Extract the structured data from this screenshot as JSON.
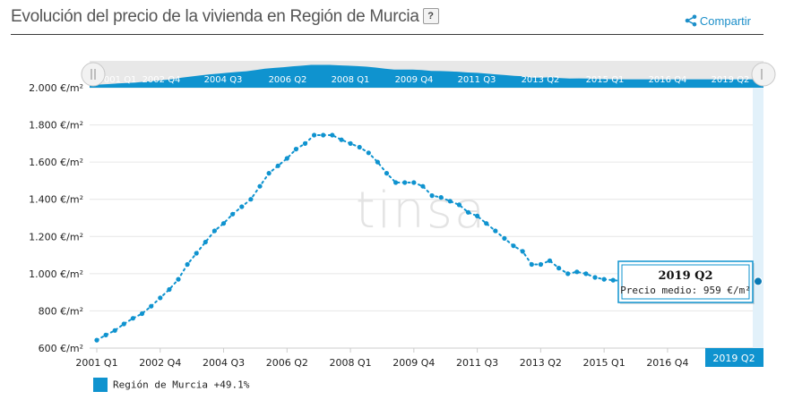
{
  "header": {
    "title": "Evolución del precio de la vivienda en Región de Murcia",
    "help_label": "?",
    "share_label": "Compartir"
  },
  "watermark": "tinsa",
  "colors": {
    "series": "#0f93cf",
    "dark": "#0a6fa5",
    "navigator_bg": "#e8e8e8"
  },
  "navigator": {
    "labels": [
      "2001 Q1",
      "2002 Q4",
      "2004 Q3",
      "2006 Q2",
      "2008 Q1",
      "2009 Q4",
      "2011 Q3",
      "2013 Q2",
      "2015 Q1",
      "2016 Q4",
      "2019 Q2"
    ]
  },
  "tooltip": {
    "title": "2019 Q2",
    "label": "Precio medio:",
    "value": "959 €/m²"
  },
  "current_label": "2019 Q2",
  "legend": {
    "name": "Región de Murcia",
    "change": "+49.1%"
  },
  "chart_data": {
    "type": "line",
    "xlabel": "",
    "ylabel": "",
    "ylim": [
      600,
      2000
    ],
    "yticks": [
      600,
      800,
      1000,
      1200,
      1400,
      1600,
      1800,
      2000
    ],
    "ytick_labels": [
      "600 €/m²",
      "800 €/m²",
      "1.000 €/m²",
      "1.200 €/m²",
      "1.400 €/m²",
      "1.600 €/m²",
      "1.800 €/m²",
      "2.000 €/m²"
    ],
    "xtick_labels": [
      "2001 Q1",
      "2002 Q4",
      "2004 Q3",
      "2006 Q2",
      "2008 Q1",
      "2009 Q4",
      "2011 Q3",
      "2013 Q2",
      "2015 Q1",
      "2016 Q4"
    ],
    "xtick_index": [
      0,
      7,
      14,
      21,
      28,
      35,
      42,
      49,
      56,
      63
    ],
    "categories": [
      "2001 Q1",
      "2001 Q2",
      "2001 Q3",
      "2001 Q4",
      "2002 Q1",
      "2002 Q2",
      "2002 Q3",
      "2002 Q4",
      "2003 Q1",
      "2003 Q2",
      "2003 Q3",
      "2003 Q4",
      "2004 Q1",
      "2004 Q2",
      "2004 Q3",
      "2004 Q4",
      "2005 Q1",
      "2005 Q2",
      "2005 Q3",
      "2005 Q4",
      "2006 Q1",
      "2006 Q2",
      "2006 Q3",
      "2006 Q4",
      "2007 Q1",
      "2007 Q2",
      "2007 Q3",
      "2007 Q4",
      "2008 Q1",
      "2008 Q2",
      "2008 Q3",
      "2008 Q4",
      "2009 Q1",
      "2009 Q2",
      "2009 Q3",
      "2009 Q4",
      "2010 Q1",
      "2010 Q2",
      "2010 Q3",
      "2010 Q4",
      "2011 Q1",
      "2011 Q2",
      "2011 Q3",
      "2011 Q4",
      "2012 Q1",
      "2012 Q2",
      "2012 Q3",
      "2012 Q4",
      "2013 Q1",
      "2013 Q2",
      "2013 Q3",
      "2013 Q4",
      "2014 Q1",
      "2014 Q2",
      "2014 Q3",
      "2014 Q4",
      "2015 Q1",
      "2015 Q2",
      "2015 Q3",
      "2015 Q4",
      "2016 Q1",
      "2016 Q2",
      "2016 Q3",
      "2016 Q4",
      "2017 Q1",
      "2017 Q2",
      "2017 Q3",
      "2017 Q4",
      "2018 Q1",
      "2018 Q2",
      "2018 Q3",
      "2018 Q4",
      "2019 Q1",
      "2019 Q2"
    ],
    "series": [
      {
        "name": "Región de Murcia",
        "change": "+49.1%",
        "values": [
          643,
          670,
          695,
          730,
          760,
          785,
          825,
          870,
          915,
          970,
          1050,
          1110,
          1170,
          1230,
          1270,
          1320,
          1360,
          1400,
          1470,
          1540,
          1580,
          1620,
          1670,
          1700,
          1745,
          1745,
          1745,
          1720,
          1700,
          1680,
          1650,
          1600,
          1540,
          1490,
          1490,
          1490,
          1470,
          1420,
          1410,
          1390,
          1370,
          1330,
          1310,
          1270,
          1230,
          1190,
          1150,
          1120,
          1050,
          1050,
          1070,
          1030,
          1000,
          1010,
          1000,
          980,
          970,
          965,
          960,
          960,
          960,
          960,
          960,
          960,
          960,
          960,
          960,
          960,
          960,
          960,
          960,
          960,
          960,
          959
        ]
      }
    ]
  }
}
